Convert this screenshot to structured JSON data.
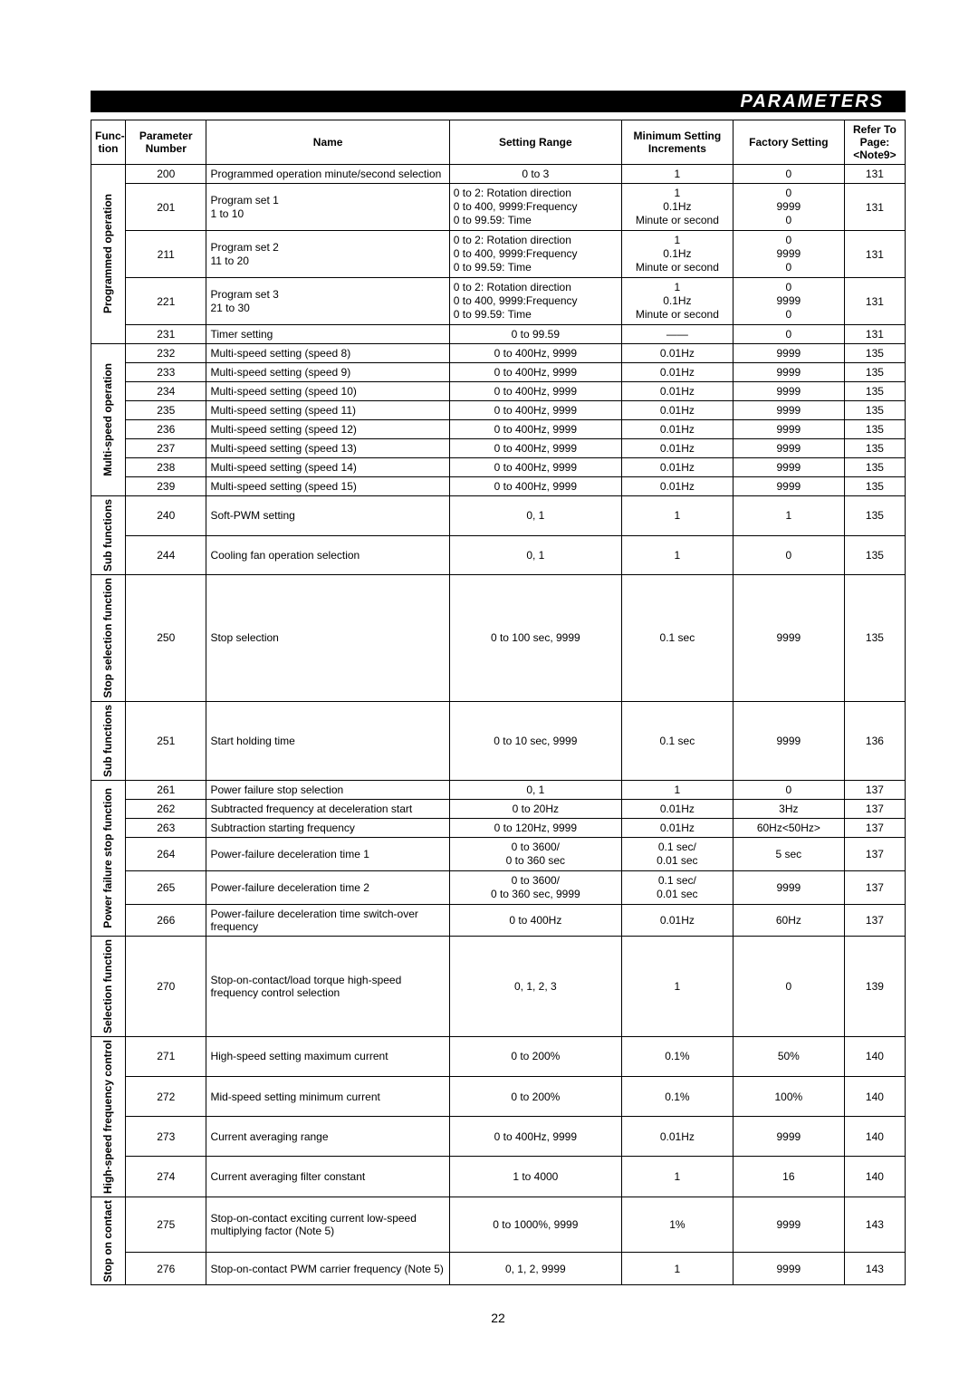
{
  "banner": {
    "title": "PARAMETERS"
  },
  "headers": {
    "func": "Func-\ntion",
    "param": "Parameter Number",
    "name": "Name",
    "range": "Setting Range",
    "inc": "Minimum Setting Increments",
    "fact": "Factory Setting",
    "page": "Refer To Page: <Note9>"
  },
  "col_widths": {
    "func": "34px",
    "param": "80px",
    "name": "240px",
    "range": "170px",
    "inc": "110px",
    "fact": "110px",
    "page": "60px"
  },
  "groups": [
    {
      "label": "Programmed operation",
      "rows": [
        {
          "num": "200",
          "name": "Programmed operation minute/second selection",
          "range": "0 to 3",
          "inc": "1",
          "fact": "0",
          "page": "131"
        },
        {
          "num": "201",
          "name": "Program set 1\n1 to 10",
          "range": "0 to 2: Rotation direction\n0 to 400, 9999:Frequency\n0 to 99.59: Time",
          "inc": "1\n0.1Hz\nMinute or second",
          "fact": "0\n9999\n0",
          "page": "131",
          "multi": true
        },
        {
          "num": "211",
          "name": "Program set 2\n11 to 20",
          "range": "0 to 2: Rotation direction\n0 to 400, 9999:Frequency\n0 to 99.59: Time",
          "inc": "1\n0.1Hz\nMinute or second",
          "fact": "0\n9999\n0",
          "page": "131",
          "multi": true
        },
        {
          "num": "221",
          "name": "Program set 3\n21 to 30",
          "range": "0 to 2: Rotation direction\n0 to 400, 9999:Frequency\n0 to 99.59: Time",
          "inc": "1\n0.1Hz\nMinute or second",
          "fact": "0\n9999\n0",
          "page": "131",
          "multi": true
        },
        {
          "num": "231",
          "name": "Timer setting",
          "range": "0 to 99.59",
          "inc": "——",
          "fact": "0",
          "page": "131"
        }
      ]
    },
    {
      "label": "Multi-speed operation",
      "rows": [
        {
          "num": "232",
          "name": "Multi-speed setting (speed 8)",
          "range": "0 to 400Hz, 9999",
          "inc": "0.01Hz",
          "fact": "9999",
          "page": "135"
        },
        {
          "num": "233",
          "name": "Multi-speed setting (speed 9)",
          "range": "0 to 400Hz, 9999",
          "inc": "0.01Hz",
          "fact": "9999",
          "page": "135"
        },
        {
          "num": "234",
          "name": "Multi-speed setting (speed 10)",
          "range": "0 to 400Hz, 9999",
          "inc": "0.01Hz",
          "fact": "9999",
          "page": "135"
        },
        {
          "num": "235",
          "name": "Multi-speed setting (speed 11)",
          "range": "0 to 400Hz, 9999",
          "inc": "0.01Hz",
          "fact": "9999",
          "page": "135"
        },
        {
          "num": "236",
          "name": "Multi-speed setting (speed 12)",
          "range": "0 to 400Hz, 9999",
          "inc": "0.01Hz",
          "fact": "9999",
          "page": "135"
        },
        {
          "num": "237",
          "name": "Multi-speed setting (speed 13)",
          "range": "0 to 400Hz, 9999",
          "inc": "0.01Hz",
          "fact": "9999",
          "page": "135"
        },
        {
          "num": "238",
          "name": "Multi-speed setting (speed 14)",
          "range": "0 to 400Hz, 9999",
          "inc": "0.01Hz",
          "fact": "9999",
          "page": "135"
        },
        {
          "num": "239",
          "name": "Multi-speed setting (speed 15)",
          "range": "0 to 400Hz, 9999",
          "inc": "0.01Hz",
          "fact": "9999",
          "page": "135"
        }
      ]
    },
    {
      "label": "Sub functions",
      "rows": [
        {
          "num": "240",
          "name": "Soft-PWM setting",
          "range": "0, 1",
          "inc": "1",
          "fact": "1",
          "page": "135",
          "pad": true
        },
        {
          "num": "244",
          "name": "Cooling fan operation selection",
          "range": "0, 1",
          "inc": "1",
          "fact": "0",
          "page": "135",
          "pad": true
        }
      ]
    },
    {
      "label": "Stop selection function",
      "rows": [
        {
          "num": "250",
          "name": "Stop selection",
          "range": "0 to 100 sec, 9999",
          "inc": "0.1 sec",
          "fact": "9999",
          "page": "135",
          "tall": "80px"
        }
      ]
    },
    {
      "label": "Sub functions",
      "rows": [
        {
          "num": "251",
          "name": "Start holding time",
          "range": "0 to 10 sec, 9999",
          "inc": "0.1 sec",
          "fact": "9999",
          "page": "136",
          "tall": "56px"
        }
      ]
    },
    {
      "label": "Power failure stop function",
      "rows": [
        {
          "num": "261",
          "name": "Power failure stop selection",
          "range": "0, 1",
          "inc": "1",
          "fact": "0",
          "page": "137"
        },
        {
          "num": "262",
          "name": "Subtracted frequency at deceleration start",
          "range": "0 to 20Hz",
          "inc": "0.01Hz",
          "fact": "3Hz",
          "page": "137"
        },
        {
          "num": "263",
          "name": "Subtraction starting frequency",
          "range": "0 to 120Hz, 9999",
          "inc": "0.01Hz",
          "fact": "60Hz<50Hz>",
          "page": "137"
        },
        {
          "num": "264",
          "name": "Power-failure deceleration time 1",
          "range": "0 to 3600/\n0 to 360 sec",
          "inc": "0.1 sec/\n0.01 sec",
          "fact": "5 sec",
          "page": "137",
          "multi": true,
          "range_center": true
        },
        {
          "num": "265",
          "name": "Power-failure deceleration time 2",
          "range": "0 to 3600/\n0 to 360 sec, 9999",
          "inc": "0.1 sec/\n0.01 sec",
          "fact": "9999",
          "page": "137",
          "multi": true,
          "range_center": true
        },
        {
          "num": "266",
          "name": "Power-failure deceleration time switch-over frequency",
          "range": "0 to 400Hz",
          "inc": "0.01Hz",
          "fact": "60Hz",
          "page": "137"
        }
      ]
    },
    {
      "label": "Selection function",
      "rows": [
        {
          "num": "270",
          "name": "Stop-on-contact/load torque high-speed frequency control selection",
          "range": "0, 1, 2, 3",
          "inc": "1",
          "fact": "0",
          "page": "139",
          "tall": "70px"
        }
      ]
    },
    {
      "label": "High-speed frequency control",
      "rows": [
        {
          "num": "271",
          "name": "High-speed setting maximum current",
          "range": "0 to 200%",
          "inc": "0.1%",
          "fact": "50%",
          "page": "140"
        },
        {
          "num": "272",
          "name": "Mid-speed setting minimum current",
          "range": "0 to 200%",
          "inc": "0.1%",
          "fact": "100%",
          "page": "140"
        },
        {
          "num": "273",
          "name": "Current averaging range",
          "range": "0 to 400Hz, 9999",
          "inc": "0.01Hz",
          "fact": "9999",
          "page": "140"
        },
        {
          "num": "274",
          "name": "Current averaging filter constant",
          "range": "1 to 4000",
          "inc": "1",
          "fact": "16",
          "page": "140"
        }
      ]
    },
    {
      "label": "Stop on contact",
      "rows": [
        {
          "num": "275",
          "name": "Stop-on-contact exciting current low-speed multiplying factor (Note 5)",
          "range": "0 to 1000%, 9999",
          "inc": "1%",
          "fact": "9999",
          "page": "143"
        },
        {
          "num": "276",
          "name": "Stop-on-contact PWM carrier frequency (Note 5)",
          "range": "0, 1, 2, 9999",
          "inc": "1",
          "fact": "9999",
          "page": "143"
        }
      ]
    }
  ],
  "page_number": "22",
  "colors": {
    "text": "#000000",
    "bg": "#ffffff",
    "banner_bg": "#000000",
    "banner_text": "#ffffff",
    "border": "#000000"
  },
  "fonts": {
    "body_size_pt": 9,
    "header_size_pt": 9,
    "banner_size_pt": 15
  }
}
